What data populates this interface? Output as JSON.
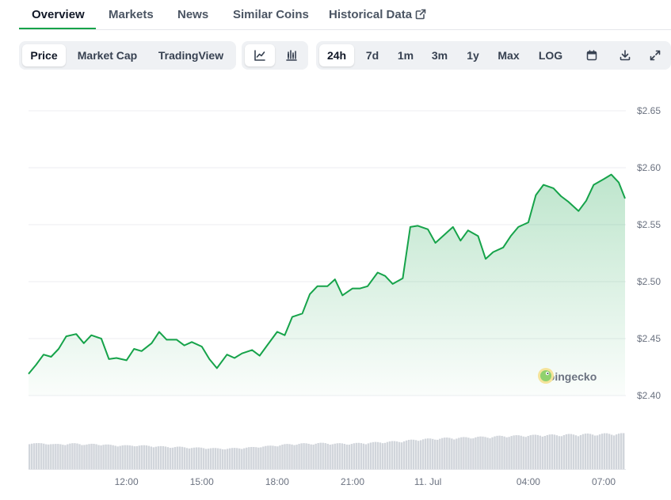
{
  "tabs": [
    {
      "label": "Overview",
      "active": true
    },
    {
      "label": "Markets",
      "active": false
    },
    {
      "label": "News",
      "active": false
    },
    {
      "label": "Similar Coins",
      "active": false
    },
    {
      "label": "Historical Data",
      "active": false,
      "icon": "external-link-icon"
    }
  ],
  "toolbar": {
    "metric_tabs": [
      {
        "label": "Price",
        "active": true
      },
      {
        "label": "Market Cap",
        "active": false
      },
      {
        "label": "TradingView",
        "active": false
      }
    ],
    "chart_type_buttons": [
      {
        "icon": "line-chart-icon",
        "active": true
      },
      {
        "icon": "candlestick-chart-icon",
        "active": false
      }
    ],
    "range_tabs": [
      {
        "label": "24h",
        "active": true
      },
      {
        "label": "7d",
        "active": false
      },
      {
        "label": "1m",
        "active": false
      },
      {
        "label": "3m",
        "active": false
      },
      {
        "label": "1y",
        "active": false
      },
      {
        "label": "Max",
        "active": false
      },
      {
        "label": "LOG",
        "active": false
      }
    ],
    "action_buttons": [
      {
        "icon": "calendar-icon"
      },
      {
        "icon": "download-icon"
      },
      {
        "icon": "expand-icon"
      }
    ]
  },
  "watermark": {
    "text": "coingecko",
    "icon": "coingecko-logo-icon"
  },
  "colors": {
    "line": "#16a34a",
    "area_top": "#16a34a",
    "grid": "#eceef1",
    "volume": "#d1d5db",
    "accent": "#16a34a"
  },
  "chart_data": {
    "type": "area",
    "title": "",
    "xlabel": "",
    "ylabel": "",
    "x_ticks": [
      "12:00",
      "15:00",
      "18:00",
      "21:00",
      "11. Jul",
      "04:00",
      "07:00"
    ],
    "x_tick_hours": [
      12,
      15,
      18,
      21,
      24,
      28,
      31
    ],
    "y_ticks": [
      "$2.65",
      "$2.60",
      "$2.55",
      "$2.50",
      "$2.45",
      "$2.40"
    ],
    "y_tick_values": [
      2.65,
      2.6,
      2.55,
      2.5,
      2.45,
      2.4
    ],
    "ylim": [
      2.4,
      2.65
    ],
    "grid": true,
    "series": [
      {
        "hours": [
          8.1,
          8.4,
          8.7,
          9.0,
          9.3,
          9.6,
          10.0,
          10.3,
          10.6,
          11.0,
          11.3,
          11.6,
          12.0,
          12.3,
          12.6,
          13.0,
          13.3,
          13.6,
          14.0,
          14.3,
          14.6,
          15.0,
          15.3,
          15.6,
          16.0,
          16.3,
          16.6,
          17.0,
          17.3,
          17.6,
          18.0,
          18.3,
          18.6,
          19.0,
          19.3,
          19.6,
          20.0,
          20.3,
          20.6,
          21.0,
          21.3,
          21.6,
          22.0,
          22.3,
          22.6,
          23.0,
          23.3,
          23.6,
          24.0,
          24.3,
          24.6,
          25.0,
          25.3,
          25.6,
          26.0,
          26.3,
          26.6,
          27.0,
          27.3,
          27.6,
          28.0,
          28.3,
          28.6,
          29.0,
          29.3,
          29.6,
          30.0,
          30.3,
          30.6,
          31.0,
          31.3,
          31.6,
          31.85
        ],
        "price": [
          2.419,
          2.427,
          2.436,
          2.434,
          2.441,
          2.452,
          2.454,
          2.446,
          2.453,
          2.45,
          2.432,
          2.433,
          2.431,
          2.441,
          2.439,
          2.446,
          2.456,
          2.449,
          2.449,
          2.444,
          2.447,
          2.443,
          2.432,
          2.424,
          2.436,
          2.433,
          2.437,
          2.44,
          2.435,
          2.444,
          2.456,
          2.453,
          2.469,
          2.472,
          2.489,
          2.496,
          2.496,
          2.502,
          2.488,
          2.494,
          2.494,
          2.496,
          2.508,
          2.505,
          2.498,
          2.503,
          2.548,
          2.549,
          2.546,
          2.534,
          2.54,
          2.548,
          2.536,
          2.545,
          2.54,
          2.52,
          2.526,
          2.53,
          2.54,
          2.548,
          2.552,
          2.576,
          2.585,
          2.582,
          2.575,
          2.57,
          2.562,
          2.571,
          2.585,
          2.59,
          2.594,
          2.587,
          2.573
        ]
      }
    ],
    "volume_level": [
      0.64,
      0.62,
      0.63,
      0.6,
      0.61,
      0.62,
      0.62,
      0.6,
      0.61,
      0.6,
      0.58,
      0.58,
      0.57,
      0.58,
      0.57,
      0.56,
      0.55,
      0.54,
      0.54,
      0.53,
      0.52,
      0.52,
      0.51,
      0.5,
      0.5,
      0.51,
      0.52,
      0.53,
      0.55,
      0.56,
      0.58,
      0.6,
      0.61,
      0.62,
      0.62,
      0.63,
      0.63,
      0.62,
      0.62,
      0.62,
      0.63,
      0.64,
      0.65,
      0.66,
      0.67,
      0.68,
      0.7,
      0.72,
      0.73,
      0.74,
      0.75,
      0.76,
      0.76,
      0.77,
      0.78,
      0.78,
      0.79,
      0.8,
      0.81,
      0.81,
      0.82,
      0.82,
      0.83,
      0.83,
      0.83,
      0.84,
      0.84,
      0.85,
      0.85,
      0.85,
      0.86,
      0.86,
      0.86
    ]
  }
}
